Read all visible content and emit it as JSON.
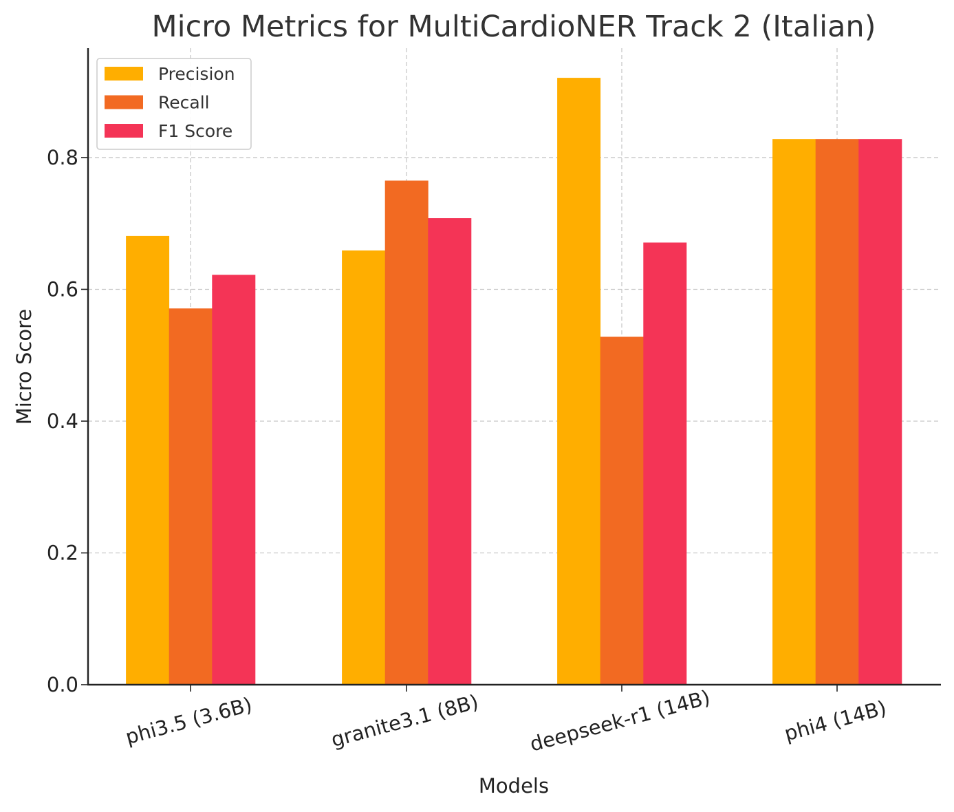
{
  "chart_data": {
    "type": "bar",
    "title": "Micro Metrics for MultiCardioNER Track 2 (Italian)",
    "xlabel": "Models",
    "ylabel": "Micro Score",
    "categories": [
      "phi3.5 (3.6B)",
      "granite3.1 (8B)",
      "deepseek-r1 (14B)",
      "phi4 (14B)"
    ],
    "series": [
      {
        "name": "Precision",
        "color": "#ffae00",
        "values": [
          0.681,
          0.659,
          0.921,
          0.828
        ]
      },
      {
        "name": "Recall",
        "color": "#f26a22",
        "values": [
          0.571,
          0.765,
          0.528,
          0.828
        ]
      },
      {
        "name": "F1 Score",
        "color": "#f43456",
        "values": [
          0.622,
          0.708,
          0.671,
          0.828
        ]
      }
    ],
    "ylim": [
      0,
      0.966
    ],
    "yticks": [
      "0.0",
      "0.2",
      "0.4",
      "0.6",
      "0.8"
    ],
    "grid": true,
    "legend_position": "top-left"
  }
}
